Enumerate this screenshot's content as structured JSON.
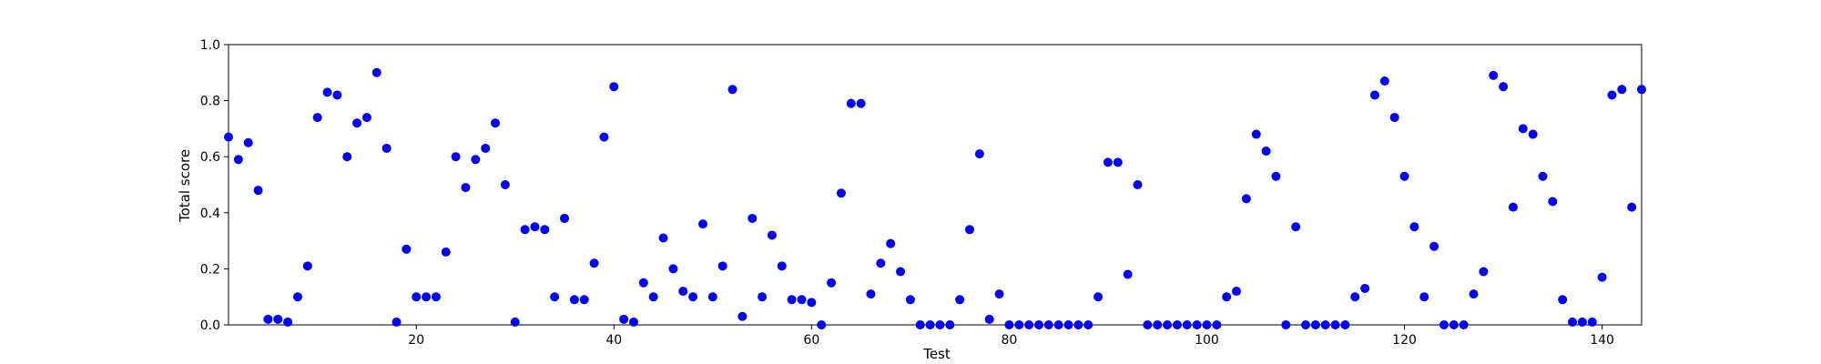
{
  "chart_data": {
    "type": "scatter",
    "title": "",
    "xlabel": "Test",
    "ylabel": "Total score",
    "xlim": [
      1,
      144
    ],
    "ylim": [
      0.0,
      1.0
    ],
    "xticks": [
      20,
      40,
      60,
      80,
      100,
      120,
      140
    ],
    "yticks": [
      0.0,
      0.2,
      0.4,
      0.6,
      0.8,
      1.0
    ],
    "grid": false,
    "marker_color": "#0000ff",
    "series": [
      {
        "x": [
          1,
          2,
          3,
          4,
          5,
          6,
          7,
          8,
          9,
          10,
          11,
          12,
          13,
          14,
          15,
          16,
          17,
          18,
          19,
          20,
          21,
          22,
          23,
          24,
          25,
          26,
          27,
          28,
          29,
          30,
          31,
          32,
          33,
          34,
          35,
          36,
          37,
          38,
          39,
          40,
          41,
          42,
          43,
          44,
          45,
          46,
          47,
          48,
          49,
          50,
          51,
          52,
          53,
          54,
          55,
          56,
          57,
          58,
          59,
          60,
          61,
          62,
          63,
          64,
          65,
          66,
          67,
          68,
          69,
          70,
          71,
          72,
          73,
          74,
          75,
          76,
          77,
          78,
          79,
          80,
          81,
          82,
          83,
          84,
          85,
          86,
          87,
          88,
          89,
          90,
          91,
          92,
          93,
          94,
          95,
          96,
          97,
          98,
          99,
          100,
          101,
          102,
          103,
          104,
          105,
          106,
          107,
          108,
          109,
          110,
          111,
          112,
          113,
          114,
          115,
          116,
          117,
          118,
          119,
          120,
          121,
          122,
          123,
          124,
          125,
          126,
          127,
          128,
          129,
          130,
          131,
          132,
          133,
          134,
          135,
          136,
          137,
          138,
          139,
          140,
          141,
          142,
          143,
          144
        ],
        "y": [
          0.67,
          0.59,
          0.65,
          0.48,
          0.02,
          0.02,
          0.01,
          0.1,
          0.21,
          0.74,
          0.83,
          0.82,
          0.6,
          0.72,
          0.74,
          0.9,
          0.63,
          0.01,
          0.27,
          0.1,
          0.1,
          0.1,
          0.26,
          0.6,
          0.49,
          0.59,
          0.63,
          0.72,
          0.5,
          0.01,
          0.34,
          0.35,
          0.34,
          0.1,
          0.38,
          0.09,
          0.09,
          0.22,
          0.67,
          0.85,
          0.02,
          0.01,
          0.15,
          0.1,
          0.31,
          0.2,
          0.12,
          0.1,
          0.36,
          0.1,
          0.21,
          0.84,
          0.03,
          0.38,
          0.1,
          0.32,
          0.21,
          0.09,
          0.09,
          0.08,
          0.0,
          0.15,
          0.47,
          0.79,
          0.79,
          0.11,
          0.22,
          0.29,
          0.19,
          0.09,
          0.0,
          0.0,
          0.0,
          0.0,
          0.09,
          0.34,
          0.61,
          0.02,
          0.11,
          0.0,
          0.0,
          0.0,
          0.0,
          0.0,
          0.0,
          0.0,
          0.0,
          0.0,
          0.1,
          0.58,
          0.58,
          0.18,
          0.5,
          0.0,
          0.0,
          0.0,
          0.0,
          0.0,
          0.0,
          0.0,
          0.0,
          0.1,
          0.12,
          0.45,
          0.68,
          0.62,
          0.53,
          0.0,
          0.35,
          0.0,
          0.0,
          0.0,
          0.0,
          0.0,
          0.1,
          0.13,
          0.82,
          0.87,
          0.74,
          0.53,
          0.35,
          0.1,
          0.28,
          0.0,
          0.0,
          0.0,
          0.11,
          0.19,
          0.89,
          0.85,
          0.42,
          0.7,
          0.68,
          0.53,
          0.44,
          0.09,
          0.01,
          0.01,
          0.01,
          0.17,
          0.82,
          0.84,
          0.42,
          0.84
        ]
      }
    ]
  }
}
